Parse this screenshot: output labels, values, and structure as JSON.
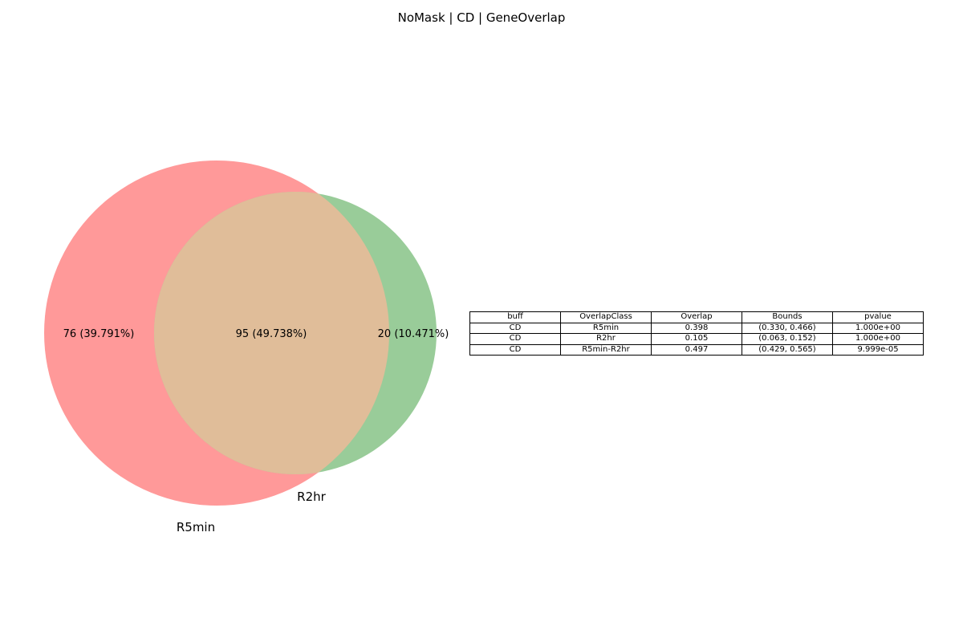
{
  "title": "NoMask | CD | GeneOverlap",
  "chart_data": [
    {
      "type": "venn",
      "sets": [
        {
          "name": "R5min",
          "color": "#ff9999"
        },
        {
          "name": "R2hr",
          "color": "#99cc99"
        }
      ],
      "overlap_color": "#e0bd99",
      "regions": [
        {
          "sets": [
            "R5min"
          ],
          "count": 76,
          "percent": 39.791,
          "label": "76 (39.791%)"
        },
        {
          "sets": [
            "R5min",
            "R2hr"
          ],
          "count": 95,
          "percent": 49.738,
          "label": "95 (49.738%)"
        },
        {
          "sets": [
            "R2hr"
          ],
          "count": 20,
          "percent": 10.471,
          "label": "20 (10.471%)"
        }
      ]
    },
    {
      "type": "table",
      "columns": [
        "buff",
        "OverlapClass",
        "Overlap",
        "Bounds",
        "pvalue"
      ],
      "rows": [
        [
          "CD",
          "R5min",
          "0.398",
          "(0.330, 0.466)",
          "1.000e+00"
        ],
        [
          "CD",
          "R2hr",
          "0.105",
          "(0.063, 0.152)",
          "1.000e+00"
        ],
        [
          "CD",
          "R5min-R2hr",
          "0.497",
          "(0.429, 0.565)",
          "9.999e-05"
        ]
      ]
    }
  ]
}
